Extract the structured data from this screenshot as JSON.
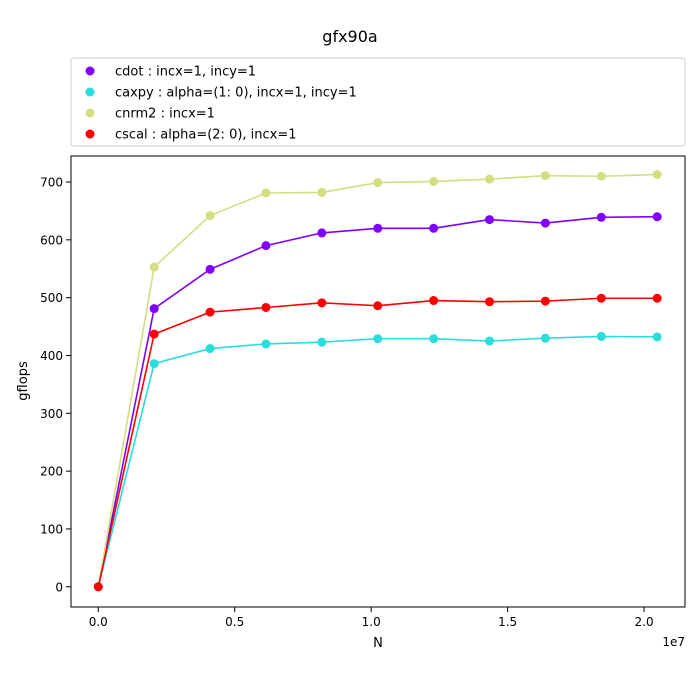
{
  "chart_data": {
    "type": "line",
    "title": "gfx90a",
    "xlabel": "N",
    "ylabel": "gflops",
    "x_offset_label": "1e7",
    "xlim": [
      -1000000,
      21500000
    ],
    "ylim": [
      -35,
      745
    ],
    "x_ticks": [
      {
        "value": 0,
        "label": "0.0"
      },
      {
        "value": 5000000,
        "label": "0.5"
      },
      {
        "value": 10000000,
        "label": "1.0"
      },
      {
        "value": 15000000,
        "label": "1.5"
      },
      {
        "value": 20000000,
        "label": "2.0"
      }
    ],
    "y_ticks": [
      {
        "value": 0,
        "label": "0"
      },
      {
        "value": 100,
        "label": "100"
      },
      {
        "value": 200,
        "label": "200"
      },
      {
        "value": 300,
        "label": "300"
      },
      {
        "value": 400,
        "label": "400"
      },
      {
        "value": 500,
        "label": "500"
      },
      {
        "value": 600,
        "label": "600"
      },
      {
        "value": 700,
        "label": "700"
      }
    ],
    "grid": false,
    "legend_position": "top (above plot)",
    "x": [
      0,
      2048000,
      4096000,
      6144000,
      8192000,
      10240000,
      12288000,
      14336000,
      16384000,
      18432000,
      20480000
    ],
    "series": [
      {
        "name": "cdot :  incx=1, incy=1",
        "color": "#8000ff",
        "values": [
          0,
          481,
          549,
          590,
          612,
          620,
          620,
          635,
          629,
          639,
          640
        ]
      },
      {
        "name": "caxpy :  alpha=(1: 0), incx=1, incy=1",
        "color": "#2adddd",
        "values": [
          0,
          386,
          412,
          420,
          423,
          429,
          429,
          425,
          430,
          433,
          432
        ]
      },
      {
        "name": "cnrm2 :  incx=1",
        "color": "#d4dd80",
        "values": [
          0,
          553,
          642,
          681,
          682,
          699,
          701,
          705,
          711,
          710,
          713
        ]
      },
      {
        "name": "cscal :  alpha=(2: 0), incx=1",
        "color": "#ff0000",
        "values": [
          0,
          437,
          475,
          483,
          491,
          486,
          495,
          493,
          494,
          499,
          499
        ]
      }
    ]
  }
}
